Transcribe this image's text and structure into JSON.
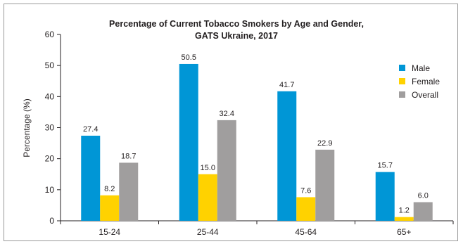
{
  "chart_data": {
    "type": "bar",
    "title_line1": "Percentage of Current Tobacco Smokers by Age and Gender,",
    "title_line2": "GATS Ukraine, 2017",
    "xlabel": "",
    "ylabel": "Percentage (%)",
    "ylim": [
      0,
      60
    ],
    "yticks": [
      0,
      10,
      20,
      30,
      40,
      50,
      60
    ],
    "categories": [
      "15-24",
      "25-44",
      "45-64",
      "65+"
    ],
    "series": [
      {
        "name": "Male",
        "color": "#0096d6",
        "values": [
          27.4,
          50.5,
          41.7,
          15.7
        ]
      },
      {
        "name": "Female",
        "color": "#ffd200",
        "values": [
          8.2,
          15.0,
          7.6,
          1.2
        ]
      },
      {
        "name": "Overall",
        "color": "#a09e9e",
        "values": [
          18.7,
          32.4,
          22.9,
          6.0
        ]
      }
    ],
    "value_labels": [
      [
        "27.4",
        "50.5",
        "41.7",
        "15.7"
      ],
      [
        "8.2",
        "15.0",
        "7.6",
        "1.2"
      ],
      [
        "18.7",
        "32.4",
        "22.9",
        "6.0"
      ]
    ],
    "grid": false,
    "legend_position": "right"
  }
}
